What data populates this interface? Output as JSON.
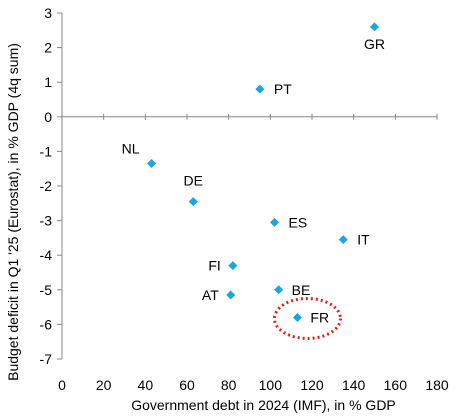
{
  "chart_data": {
    "type": "scatter",
    "title": "",
    "xlabel": "Government debt in 2024 (IMF), in % GDP",
    "ylabel": "Budget deficit in Q1 '25 (Eurostat), in % GDP (4q sum)",
    "xlim": [
      0,
      180
    ],
    "ylim": [
      -7,
      3
    ],
    "xticks": [
      0,
      20,
      40,
      60,
      80,
      100,
      120,
      140,
      160,
      180
    ],
    "yticks": [
      -7,
      -6,
      -5,
      -4,
      -3,
      -2,
      -1,
      0,
      1,
      2,
      3
    ],
    "grid": false,
    "legend": "none",
    "marker_color": "#1AA6E0",
    "highlight_color": "#E0201B",
    "highlight": "FR",
    "points": [
      {
        "label": "GR",
        "x": 150,
        "y": 2.6
      },
      {
        "label": "PT",
        "x": 95,
        "y": 0.8
      },
      {
        "label": "NL",
        "x": 43,
        "y": -1.35
      },
      {
        "label": "DE",
        "x": 63,
        "y": -2.45
      },
      {
        "label": "ES",
        "x": 102,
        "y": -3.05
      },
      {
        "label": "IT",
        "x": 135,
        "y": -3.55
      },
      {
        "label": "FI",
        "x": 82,
        "y": -4.3
      },
      {
        "label": "BE",
        "x": 104,
        "y": -5.0
      },
      {
        "label": "AT",
        "x": 81,
        "y": -5.15
      },
      {
        "label": "FR",
        "x": 113,
        "y": -5.8
      }
    ]
  }
}
